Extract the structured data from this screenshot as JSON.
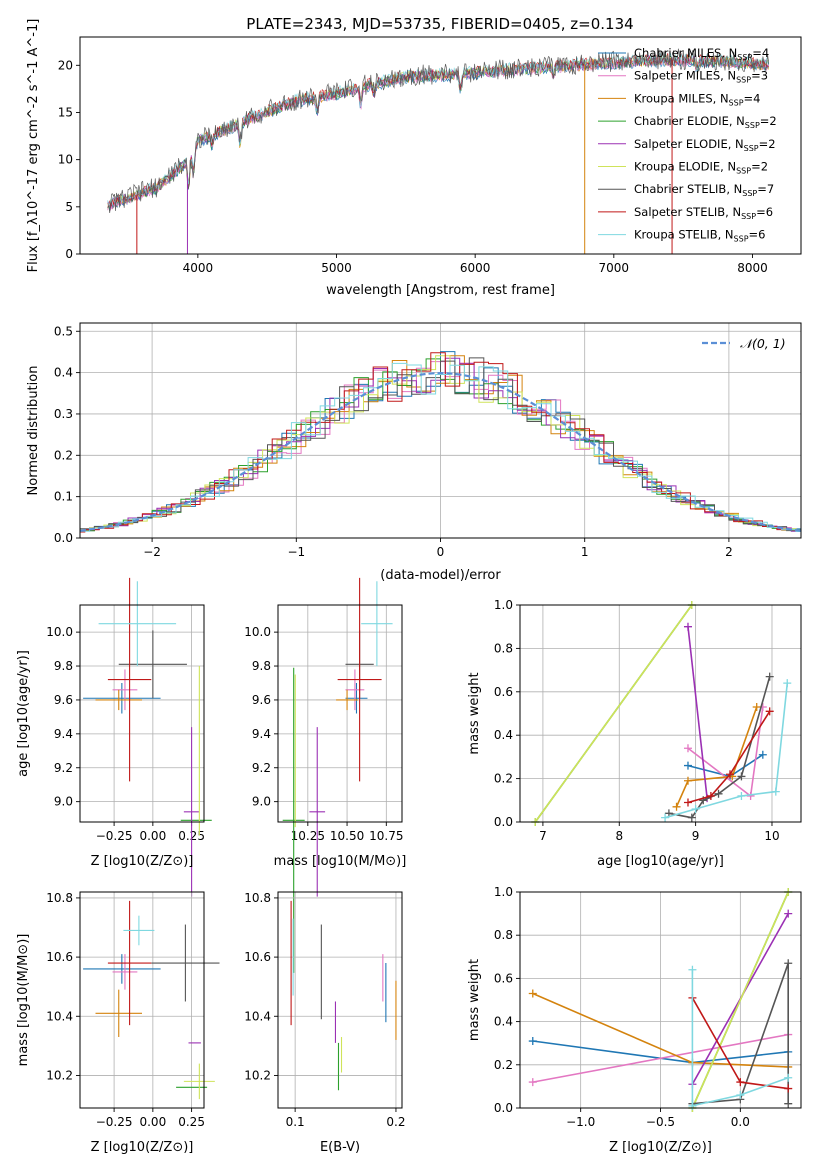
{
  "figure": {
    "title": "PLATE=2343, MJD=53735, FIBERID=0405, z=0.134"
  },
  "series_styles": [
    {
      "name": "Chabrier MILES, N",
      "sub": "SSP",
      "tail": "=4",
      "color": "#1f77b4"
    },
    {
      "name": "Salpeter MILES, N",
      "sub": "SSP",
      "tail": "=3",
      "color": "#e377c2"
    },
    {
      "name": "Kroupa MILES, N",
      "sub": "SSP",
      "tail": "=4",
      "color": "#d4830e"
    },
    {
      "name": "Chabrier ELODIE, N",
      "sub": "SSP",
      "tail": "=2",
      "color": "#2ca02c"
    },
    {
      "name": "Salpeter ELODIE, N",
      "sub": "SSP",
      "tail": "=2",
      "color": "#9b30b4"
    },
    {
      "name": "Kroupa ELODIE, N",
      "sub": "SSP",
      "tail": "=2",
      "color": "#cfe35a"
    },
    {
      "name": "Chabrier STELIB, N",
      "sub": "SSP",
      "tail": "=7",
      "color": "#555555"
    },
    {
      "name": "Salpeter STELIB, N",
      "sub": "SSP",
      "tail": "=6",
      "color": "#c01818"
    },
    {
      "name": "Kroupa STELIB, N",
      "sub": "SSP",
      "tail": "=6",
      "color": "#7fd8e0"
    }
  ],
  "chart_data": [
    {
      "id": "spectrum",
      "type": "line",
      "xlabel": "wavelength [Angstrom, rest frame]",
      "ylabel": "Flux [f_λ10^-17 erg cm^-2 s^-1 A^-1]",
      "xlim": [
        3150,
        8350
      ],
      "ylim": [
        0,
        23
      ],
      "xticks": [
        4000,
        5000,
        6000,
        7000,
        8000
      ],
      "yticks": [
        0,
        5,
        10,
        15,
        20
      ],
      "grid": false,
      "legend": "right",
      "anchor_x": [
        3350,
        3500,
        3700,
        3900,
        4000,
        4200,
        4400,
        4700,
        5000,
        5200,
        5500,
        5800,
        6000,
        6300,
        6600,
        7000,
        7400,
        7800,
        8100
      ],
      "anchor_y": [
        5.2,
        6.0,
        7.0,
        9.5,
        12.0,
        13.2,
        14.5,
        16.2,
        17.0,
        17.8,
        18.8,
        19.0,
        19.2,
        19.6,
        19.9,
        20.3,
        20.6,
        20.4,
        20.1
      ]
    },
    {
      "id": "residuals",
      "type": "histogram",
      "xlabel": "(data-model)/error",
      "ylabel": "Normed distribution",
      "xlim": [
        -2.5,
        2.5
      ],
      "ylim": [
        0,
        0.52
      ],
      "xticks": [
        -2,
        -1,
        0,
        1,
        2
      ],
      "yticks": [
        0.0,
        0.1,
        0.2,
        0.3,
        0.4,
        0.5
      ],
      "grid": true,
      "legend": "upper right",
      "reference_curve": "N(0,1)"
    },
    {
      "id": "age_vs_Z",
      "type": "errorbar",
      "xlabel": "Z [log10(Z/Z⊙)]",
      "ylabel": "age [log10(age/yr)]",
      "xlim": [
        -0.47,
        0.33
      ],
      "ylim": [
        8.88,
        10.16
      ],
      "xticks": [
        -0.25,
        0.0,
        0.25
      ],
      "yticks": [
        9.0,
        9.2,
        9.4,
        9.6,
        9.8,
        10.0
      ],
      "grid": true,
      "points": [
        {
          "series": 0,
          "x": -0.2,
          "y": 9.61,
          "xerr": 0.25,
          "yerr": 0.09
        },
        {
          "series": 1,
          "x": -0.18,
          "y": 9.66,
          "xerr": 0.08,
          "yerr": 0.12
        },
        {
          "series": 2,
          "x": -0.22,
          "y": 9.6,
          "xerr": 0.15,
          "yerr": 0.06
        },
        {
          "series": 3,
          "x": 0.28,
          "y": 8.89,
          "xerr": 0.1,
          "yerr": 0.0
        },
        {
          "series": 4,
          "x": 0.25,
          "y": 8.94,
          "xerr": 0.05,
          "yerr": 0.5
        },
        {
          "series": 5,
          "x": 0.3,
          "y": 9.3,
          "xerr": 0.0,
          "yerr": 0.5
        },
        {
          "series": 6,
          "x": 0.0,
          "y": 9.81,
          "xerr": 0.22,
          "yerr": 0.2
        },
        {
          "series": 7,
          "x": -0.15,
          "y": 9.72,
          "xerr": 0.14,
          "yerr": 0.6
        },
        {
          "series": 8,
          "x": -0.1,
          "y": 10.05,
          "xerr": 0.25,
          "yerr": 0.25
        }
      ]
    },
    {
      "id": "age_vs_mass",
      "type": "errorbar",
      "xlabel": "mass [log10(M/M⊙)]",
      "ylabel": "",
      "xlim": [
        10.06,
        10.85
      ],
      "ylim": [
        8.88,
        10.16
      ],
      "xticks": [
        10.25,
        10.5,
        10.75
      ],
      "yticks": [
        9.0,
        9.2,
        9.4,
        9.6,
        9.8,
        10.0
      ],
      "grid": true,
      "points": [
        {
          "series": 0,
          "x": 10.56,
          "y": 9.61,
          "xerr": 0.07,
          "yerr": 0.09
        },
        {
          "series": 1,
          "x": 10.55,
          "y": 9.66,
          "xerr": 0.06,
          "yerr": 0.12
        },
        {
          "series": 2,
          "x": 10.5,
          "y": 9.6,
          "xerr": 0.07,
          "yerr": 0.06
        },
        {
          "series": 3,
          "x": 10.16,
          "y": 8.89,
          "xerr": 0.07,
          "yerr": 0.9
        },
        {
          "series": 4,
          "x": 10.31,
          "y": 8.94,
          "xerr": 0.05,
          "yerr": 0.5
        },
        {
          "series": 5,
          "x": 10.17,
          "y": 9.3,
          "xerr": 0.0,
          "yerr": 0.45
        },
        {
          "series": 6,
          "x": 10.58,
          "y": 9.81,
          "xerr": 0.09,
          "yerr": 0.2
        },
        {
          "series": 7,
          "x": 10.58,
          "y": 9.72,
          "xerr": 0.14,
          "yerr": 0.6
        },
        {
          "series": 8,
          "x": 10.69,
          "y": 10.05,
          "xerr": 0.1,
          "yerr": 0.25
        }
      ]
    },
    {
      "id": "weight_vs_age",
      "type": "line",
      "xlabel": "age [log10(age/yr)]",
      "ylabel": "mass weight",
      "xlim": [
        6.7,
        10.38
      ],
      "ylim": [
        0,
        1.0
      ],
      "xticks": [
        7,
        8,
        9,
        10
      ],
      "yticks": [
        0.0,
        0.2,
        0.4,
        0.6,
        0.8,
        1.0
      ],
      "grid": true,
      "series": [
        {
          "series": 0,
          "x": [
            8.9,
            9.45,
            9.88
          ],
          "y": [
            0.26,
            0.21,
            0.31
          ]
        },
        {
          "series": 1,
          "x": [
            8.9,
            9.72,
            9.88
          ],
          "y": [
            0.34,
            0.12,
            0.53
          ]
        },
        {
          "series": 2,
          "x": [
            8.75,
            8.9,
            9.48,
            9.8
          ],
          "y": [
            0.07,
            0.19,
            0.21,
            0.53
          ]
        },
        {
          "series": 3,
          "x": [
            6.9,
            8.95
          ],
          "y": [
            0.0,
            1.0
          ]
        },
        {
          "series": 4,
          "x": [
            8.9,
            9.15
          ],
          "y": [
            0.9,
            0.11
          ]
        },
        {
          "series": 5,
          "x": [
            6.9,
            8.95
          ],
          "y": [
            0.0,
            1.0
          ]
        },
        {
          "series": 6,
          "x": [
            8.65,
            8.95,
            9.1,
            9.3,
            9.6,
            9.97
          ],
          "y": [
            0.04,
            0.02,
            0.1,
            0.13,
            0.21,
            0.67
          ]
        },
        {
          "series": 7,
          "x": [
            8.9,
            9.2,
            9.45,
            9.97
          ],
          "y": [
            0.09,
            0.12,
            0.22,
            0.51
          ]
        },
        {
          "series": 8,
          "x": [
            8.6,
            9.0,
            9.6,
            10.05,
            10.2
          ],
          "y": [
            0.02,
            0.06,
            0.12,
            0.14,
            0.64
          ]
        }
      ]
    },
    {
      "id": "mass_vs_Z",
      "type": "errorbar",
      "xlabel": "Z [log10(Z/Z⊙)]",
      "ylabel": "mass [log10(M/M⊙)]",
      "xlim": [
        -0.47,
        0.33
      ],
      "ylim": [
        10.09,
        10.82
      ],
      "xticks": [
        -0.25,
        0.0,
        0.25
      ],
      "yticks": [
        10.2,
        10.4,
        10.6,
        10.8
      ],
      "grid": true,
      "points": [
        {
          "series": 0,
          "x": -0.2,
          "y": 10.56,
          "xerr": 0.25,
          "yerr": 0.05
        },
        {
          "series": 1,
          "x": -0.18,
          "y": 10.55,
          "xerr": 0.08,
          "yerr": 0.06
        },
        {
          "series": 2,
          "x": -0.22,
          "y": 10.41,
          "xerr": 0.15,
          "yerr": 0.08
        },
        {
          "series": 3,
          "x": 0.25,
          "y": 10.16,
          "xerr": 0.1,
          "yerr": 0.0
        },
        {
          "series": 4,
          "x": 0.27,
          "y": 10.31,
          "xerr": 0.04,
          "yerr": 0.0
        },
        {
          "series": 5,
          "x": 0.3,
          "y": 10.18,
          "xerr": 0.1,
          "yerr": 0.06
        },
        {
          "series": 6,
          "x": 0.21,
          "y": 10.58,
          "xerr": 0.22,
          "yerr": 0.13
        },
        {
          "series": 7,
          "x": -0.15,
          "y": 10.58,
          "xerr": 0.14,
          "yerr": 0.21
        },
        {
          "series": 8,
          "x": -0.09,
          "y": 10.69,
          "xerr": 0.1,
          "yerr": 0.05
        }
      ]
    },
    {
      "id": "mass_vs_ebv",
      "type": "errorbar",
      "xlabel": "E(B-V)",
      "ylabel": "",
      "xlim": [
        0.083,
        0.206
      ],
      "ylim": [
        10.09,
        10.82
      ],
      "xticks": [
        0.1,
        0.2
      ],
      "yticks": [
        10.2,
        10.4,
        10.6,
        10.8
      ],
      "grid": true,
      "points": [
        {
          "series": 0,
          "x": 0.19,
          "y": 10.48,
          "xerr": 0,
          "yerr": 0.1
        },
        {
          "series": 1,
          "x": 0.187,
          "y": 10.53,
          "xerr": 0,
          "yerr": 0.08
        },
        {
          "series": 2,
          "x": 0.2,
          "y": 10.42,
          "xerr": 0,
          "yerr": 0.1
        },
        {
          "series": 3,
          "x": 0.143,
          "y": 10.23,
          "xerr": 0,
          "yerr": 0.08
        },
        {
          "series": 4,
          "x": 0.14,
          "y": 10.38,
          "xerr": 0,
          "yerr": 0.07
        },
        {
          "series": 5,
          "x": 0.146,
          "y": 10.27,
          "xerr": 0,
          "yerr": 0.06
        },
        {
          "series": 6,
          "x": 0.126,
          "y": 10.55,
          "xerr": 0,
          "yerr": 0.16
        },
        {
          "series": 7,
          "x": 0.096,
          "y": 10.58,
          "xerr": 0,
          "yerr": 0.21
        },
        {
          "series": 8,
          "x": 0.098,
          "y": 10.6,
          "xerr": 0,
          "yerr": 0.13
        }
      ]
    },
    {
      "id": "weight_vs_Z",
      "type": "line",
      "xlabel": "Z [log10(Z/Z⊙)]",
      "ylabel": "mass weight",
      "xlim": [
        -1.38,
        0.38
      ],
      "ylim": [
        0,
        1.0
      ],
      "xticks": [
        -1.0,
        -0.5,
        0.0
      ],
      "yticks": [
        0.0,
        0.2,
        0.4,
        0.6,
        0.8,
        1.0
      ],
      "grid": true,
      "series": [
        {
          "series": 0,
          "x": [
            -1.3,
            -0.3,
            0.3
          ],
          "y": [
            0.31,
            0.21,
            0.26
          ]
        },
        {
          "series": 1,
          "x": [
            -1.3,
            0.3
          ],
          "y": [
            0.12,
            0.34
          ]
        },
        {
          "series": 2,
          "x": [
            -1.3,
            -0.3,
            0.3
          ],
          "y": [
            0.53,
            0.21,
            0.19
          ]
        },
        {
          "series": 3,
          "x": [
            -0.3,
            0.3
          ],
          "y": [
            0.0,
            1.0
          ]
        },
        {
          "series": 4,
          "x": [
            -0.3,
            0.3
          ],
          "y": [
            0.11,
            0.9
          ]
        },
        {
          "series": 5,
          "x": [
            -0.3,
            0.3
          ],
          "y": [
            0.0,
            1.0
          ]
        },
        {
          "series": 6,
          "x": [
            -0.3,
            0.0,
            0.3,
            0.3
          ],
          "y": [
            0.02,
            0.04,
            0.67,
            0.02
          ]
        },
        {
          "series": 7,
          "x": [
            -0.3,
            0.0,
            0.3
          ],
          "y": [
            0.51,
            0.12,
            0.09
          ]
        },
        {
          "series": 8,
          "x": [
            -0.3,
            -0.3,
            0.0,
            0.3
          ],
          "y": [
            0.64,
            0.01,
            0.06,
            0.14
          ]
        }
      ]
    }
  ]
}
